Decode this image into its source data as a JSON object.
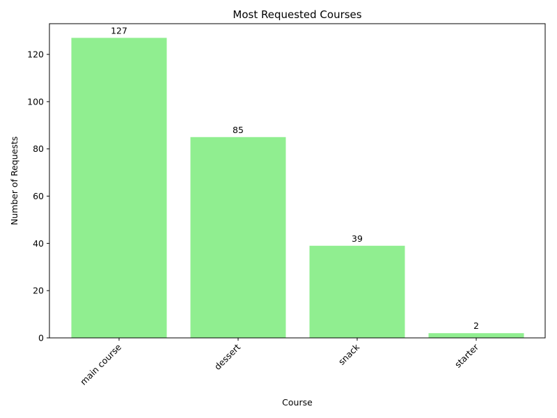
{
  "chart_data": {
    "type": "bar",
    "title": "Most Requested Courses",
    "xlabel": "Course",
    "ylabel": "Number of Requests",
    "categories": [
      "main course",
      "dessert",
      "snack",
      "starter"
    ],
    "values": [
      127,
      85,
      39,
      2
    ],
    "ylim": [
      0,
      133
    ],
    "yticks": [
      0,
      20,
      40,
      60,
      80,
      100,
      120
    ],
    "bar_color": "#90ee90",
    "grid": false,
    "legend": "none",
    "xtick_rotation": 45
  }
}
